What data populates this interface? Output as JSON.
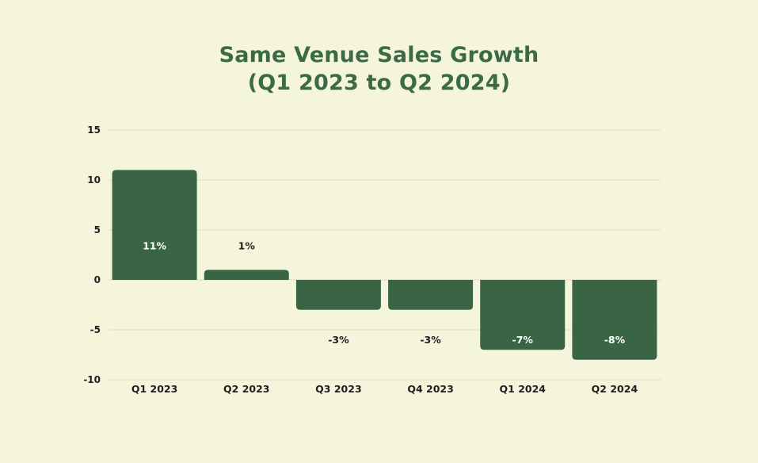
{
  "chart_data": {
    "type": "bar",
    "title": "Same Venue Sales Growth",
    "subtitle": "(Q1 2023 to Q2 2024)",
    "xlabel": "",
    "ylabel": "",
    "categories": [
      "Q1 2023",
      "Q2 2023",
      "Q3 2023",
      "Q4 2023",
      "Q1 2024",
      "Q2 2024"
    ],
    "values": [
      11,
      1,
      -3,
      -3,
      -7,
      -8
    ],
    "data_labels": [
      "11%",
      "1%",
      "-3%",
      "-3%",
      "-7%",
      "-8%"
    ],
    "ylim": [
      -10,
      15
    ],
    "yticks": [
      15,
      10,
      5,
      0,
      -5,
      -10
    ],
    "ytick_labels": [
      "15",
      "10",
      "5",
      "0",
      "-5",
      "-10"
    ],
    "grid": true,
    "colors": {
      "background": "#f5f5dc",
      "bar": "#3a6545",
      "title": "#3a6b45",
      "grid": "#dedcc2",
      "text": "#1f1f1f",
      "label_on_bar": "#ffffff"
    }
  }
}
